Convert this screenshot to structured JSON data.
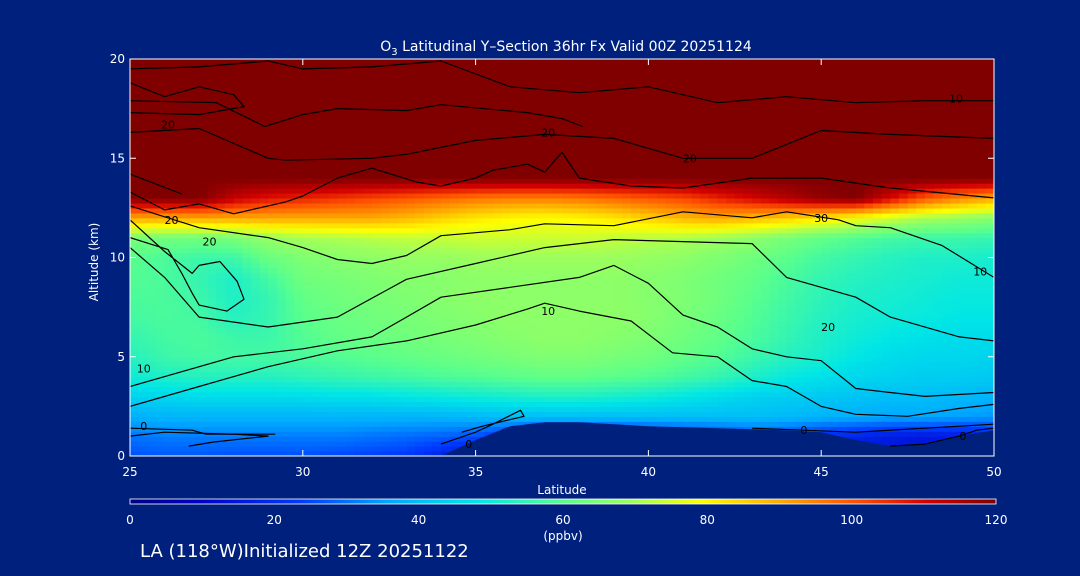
{
  "chart_data": {
    "type": "heatmap",
    "title_prefix": "O",
    "title_sub": "3",
    "title_rest": " Latitudinal Y–Section 36hr  Fx Valid 00Z 20251124",
    "xlabel": "Latitude",
    "ylabel": "Altitude (km)",
    "xlim": [
      25,
      50
    ],
    "ylim": [
      0,
      20
    ],
    "xticks": [
      "25",
      "30",
      "35",
      "40",
      "45",
      "50"
    ],
    "yticks": [
      "0",
      "5",
      "10",
      "15",
      "20"
    ],
    "colorbar": {
      "min": 0,
      "max": 120,
      "ticks": [
        "0",
        "20",
        "40",
        "60",
        "80",
        "100",
        "120"
      ],
      "unit": "(ppbv)"
    },
    "contour_labels": [
      {
        "text": "10",
        "x": 48.9,
        "y": 18.0
      },
      {
        "text": "20",
        "x": 26.1,
        "y": 16.7
      },
      {
        "text": "20",
        "x": 37.1,
        "y": 16.3
      },
      {
        "text": "20",
        "x": 41.2,
        "y": 15.0
      },
      {
        "text": "20",
        "x": 26.2,
        "y": 11.9
      },
      {
        "text": "20",
        "x": 27.3,
        "y": 10.8
      },
      {
        "text": "30",
        "x": 45.0,
        "y": 12.0
      },
      {
        "text": "10",
        "x": 49.6,
        "y": 9.3
      },
      {
        "text": "10",
        "x": 37.1,
        "y": 7.3
      },
      {
        "text": "20",
        "x": 45.2,
        "y": 6.5
      },
      {
        "text": "10",
        "x": 25.4,
        "y": 4.4
      },
      {
        "text": "0",
        "x": 25.4,
        "y": 1.5
      },
      {
        "text": "0",
        "x": 34.8,
        "y": 0.6
      },
      {
        "text": "0",
        "x": 44.5,
        "y": 1.3
      },
      {
        "text": "0",
        "x": 49.1,
        "y": 1.0
      }
    ],
    "data_x": [
      25,
      26,
      27,
      28,
      29,
      30,
      31,
      32,
      33,
      34,
      35,
      36,
      37,
      38,
      39,
      40,
      41,
      42,
      43,
      44,
      45,
      46,
      47,
      48,
      49,
      50
    ],
    "data_y": [
      0,
      1,
      2,
      3,
      4,
      5,
      6,
      7,
      8,
      9,
      10,
      11,
      12,
      13,
      14,
      15,
      16,
      17,
      18,
      19,
      20
    ],
    "values": [
      [
        26,
        27,
        27,
        26,
        26,
        26,
        25,
        24,
        23,
        18,
        12,
        8,
        8,
        8,
        9,
        10,
        10,
        10,
        11,
        12,
        13,
        14,
        15,
        16,
        17,
        18
      ],
      [
        30,
        31,
        31,
        31,
        31,
        31,
        31,
        30,
        29,
        28,
        26,
        20,
        15,
        15,
        16,
        18,
        20,
        22,
        25,
        24,
        20,
        18,
        16,
        15,
        16,
        18
      ],
      [
        37,
        38,
        38,
        38,
        38,
        38,
        38,
        38,
        38,
        38,
        39,
        40,
        40,
        40,
        40,
        40,
        40,
        40,
        40,
        39,
        38,
        37,
        36,
        36,
        35,
        34
      ],
      [
        44,
        45,
        46,
        46,
        46,
        46,
        47,
        47,
        48,
        49,
        50,
        51,
        52,
        52,
        51,
        50,
        48,
        46,
        44,
        43,
        42,
        41,
        40,
        40,
        39,
        38
      ],
      [
        50,
        52,
        53,
        53,
        53,
        54,
        55,
        56,
        57,
        58,
        59,
        60,
        61,
        61,
        60,
        59,
        57,
        55,
        52,
        49,
        47,
        45,
        44,
        43,
        43,
        42
      ],
      [
        53,
        56,
        57,
        57,
        57,
        58,
        59,
        60,
        61,
        62,
        63,
        64,
        65,
        65,
        64,
        63,
        61,
        59,
        56,
        53,
        51,
        48,
        46,
        45,
        45,
        44
      ],
      [
        55,
        57,
        58,
        56,
        56,
        59,
        61,
        62,
        63,
        64,
        65,
        66,
        67,
        67,
        66,
        65,
        63,
        61,
        58,
        55,
        52,
        50,
        48,
        47,
        46,
        46
      ],
      [
        57,
        58,
        57,
        53,
        55,
        60,
        62,
        63,
        64,
        65,
        66,
        67,
        67,
        67,
        67,
        66,
        64,
        62,
        59,
        56,
        53,
        51,
        50,
        49,
        48,
        48
      ],
      [
        58,
        58,
        56,
        52,
        55,
        61,
        63,
        64,
        65,
        66,
        67,
        67,
        67,
        67,
        67,
        66,
        65,
        63,
        60,
        57,
        54,
        52,
        51,
        50,
        49,
        49
      ],
      [
        59,
        58,
        55,
        52,
        57,
        63,
        64,
        65,
        66,
        66,
        67,
        67,
        67,
        67,
        67,
        66,
        65,
        63,
        61,
        58,
        55,
        53,
        52,
        51,
        50,
        50
      ],
      [
        60,
        58,
        56,
        56,
        62,
        65,
        66,
        67,
        68,
        68,
        69,
        69,
        69,
        69,
        69,
        68,
        67,
        65,
        63,
        60,
        57,
        55,
        53,
        52,
        52,
        51
      ],
      [
        64,
        63,
        63,
        64,
        68,
        70,
        71,
        72,
        73,
        73,
        74,
        74,
        74,
        74,
        73,
        72,
        71,
        69,
        67,
        64,
        61,
        59,
        57,
        56,
        56,
        55
      ],
      [
        90,
        90,
        90,
        90,
        90,
        90,
        90,
        90,
        88,
        85,
        82,
        80,
        79,
        80,
        82,
        85,
        88,
        90,
        88,
        85,
        82,
        78,
        74,
        70,
        68,
        66
      ],
      [
        120,
        120,
        120,
        112,
        108,
        106,
        104,
        102,
        100,
        98,
        96,
        95,
        95,
        96,
        98,
        100,
        102,
        106,
        110,
        114,
        118,
        120,
        110,
        100,
        94,
        90
      ],
      [
        120,
        120,
        120,
        120,
        120,
        120,
        120,
        120,
        120,
        120,
        120,
        120,
        120,
        120,
        120,
        120,
        120,
        120,
        120,
        120,
        120,
        120,
        120,
        120,
        120,
        120
      ],
      [
        120,
        120,
        120,
        120,
        120,
        120,
        120,
        120,
        120,
        120,
        120,
        120,
        120,
        120,
        120,
        120,
        120,
        120,
        120,
        120,
        120,
        120,
        120,
        120,
        120,
        120
      ],
      [
        120,
        120,
        120,
        120,
        120,
        120,
        120,
        120,
        120,
        120,
        120,
        120,
        120,
        120,
        120,
        120,
        120,
        120,
        120,
        120,
        120,
        120,
        120,
        120,
        120,
        120
      ],
      [
        120,
        120,
        120,
        120,
        120,
        120,
        120,
        120,
        120,
        120,
        120,
        120,
        120,
        120,
        120,
        120,
        120,
        120,
        120,
        120,
        120,
        120,
        120,
        120,
        120,
        120
      ],
      [
        120,
        120,
        120,
        120,
        120,
        120,
        120,
        120,
        120,
        120,
        120,
        120,
        120,
        120,
        120,
        120,
        120,
        120,
        120,
        120,
        120,
        120,
        120,
        120,
        120,
        120
      ],
      [
        120,
        120,
        120,
        120,
        120,
        120,
        120,
        120,
        120,
        120,
        120,
        120,
        120,
        120,
        120,
        120,
        120,
        120,
        120,
        120,
        120,
        120,
        120,
        120,
        120,
        120
      ],
      [
        120,
        120,
        120,
        120,
        120,
        120,
        120,
        120,
        120,
        120,
        120,
        120,
        120,
        120,
        120,
        120,
        120,
        120,
        120,
        120,
        120,
        120,
        120,
        120,
        120,
        120
      ]
    ],
    "terrain": [
      [
        25,
        0
      ],
      [
        34,
        0
      ],
      [
        35,
        0.8
      ],
      [
        36,
        1.5
      ],
      [
        37,
        1.7
      ],
      [
        38,
        1.7
      ],
      [
        40,
        1.5
      ],
      [
        42,
        1.4
      ],
      [
        44,
        1.3
      ],
      [
        45,
        1.2
      ],
      [
        46,
        0.8
      ],
      [
        47,
        0.5
      ],
      [
        48,
        0.6
      ],
      [
        49,
        1.0
      ],
      [
        50,
        1.3
      ],
      [
        50,
        0
      ]
    ],
    "contour_lines": [
      [
        [
          25,
          19.5
        ],
        [
          27,
          19.6
        ],
        [
          29,
          19.9
        ],
        [
          30,
          19.5
        ],
        [
          32,
          19.6
        ],
        [
          34,
          19.9
        ],
        [
          36,
          18.6
        ],
        [
          38,
          18.3
        ],
        [
          40,
          18.6
        ],
        [
          42,
          17.8
        ],
        [
          44,
          18.1
        ],
        [
          46,
          17.8
        ],
        [
          48,
          17.9
        ],
        [
          50,
          17.9
        ]
      ],
      [
        [
          25,
          18.8
        ],
        [
          26,
          18.1
        ],
        [
          27,
          18.6
        ],
        [
          28,
          18.2
        ],
        [
          28.3,
          17.6
        ],
        [
          27,
          17.2
        ],
        [
          25,
          17.3
        ]
      ],
      [
        [
          25,
          17.9
        ],
        [
          27.5,
          17.8
        ],
        [
          28.9,
          16.6
        ],
        [
          30,
          17.2
        ],
        [
          31,
          17.5
        ],
        [
          33,
          17.4
        ],
        [
          34,
          17.7
        ],
        [
          36.5,
          17.3
        ],
        [
          37.5,
          17.0
        ],
        [
          38.1,
          16.6
        ]
      ],
      [
        [
          25,
          16.3
        ],
        [
          27,
          16.5
        ],
        [
          29,
          15.0
        ],
        [
          29.5,
          14.9
        ],
        [
          32,
          15.0
        ],
        [
          33,
          15.2
        ],
        [
          35,
          15.9
        ],
        [
          37,
          16.2
        ],
        [
          39,
          16.0
        ],
        [
          41,
          15.0
        ],
        [
          43,
          15.0
        ],
        [
          45,
          16.4
        ],
        [
          47,
          16.2
        ],
        [
          50,
          16.0
        ]
      ],
      [
        [
          25,
          14.2
        ],
        [
          26.5,
          13.2
        ]
      ],
      [
        [
          25,
          13.3
        ],
        [
          26,
          12.4
        ],
        [
          27,
          12.7
        ],
        [
          28,
          12.2
        ],
        [
          29.5,
          12.8
        ],
        [
          30,
          13.1
        ],
        [
          31,
          14.0
        ],
        [
          32,
          14.5
        ],
        [
          33.3,
          13.8
        ],
        [
          34,
          13.6
        ],
        [
          35,
          14.0
        ],
        [
          35.5,
          14.4
        ],
        [
          36.5,
          14.7
        ],
        [
          37,
          14.3
        ],
        [
          37.5,
          15.3
        ],
        [
          38,
          14.0
        ],
        [
          39.5,
          13.6
        ],
        [
          41,
          13.5
        ],
        [
          43,
          14.0
        ],
        [
          45,
          14.0
        ],
        [
          47,
          13.5
        ],
        [
          50,
          13.0
        ]
      ],
      [
        [
          25,
          12.6
        ],
        [
          27,
          11.5
        ],
        [
          29,
          11.0
        ],
        [
          30,
          10.5
        ],
        [
          31,
          9.9
        ],
        [
          32,
          9.7
        ],
        [
          33,
          10.1
        ],
        [
          34,
          11.1
        ],
        [
          36,
          11.4
        ],
        [
          37,
          11.7
        ],
        [
          39,
          11.6
        ],
        [
          41,
          12.3
        ],
        [
          43,
          12.0
        ],
        [
          44,
          12.3
        ],
        [
          45.5,
          11.9
        ],
        [
          46,
          11.6
        ],
        [
          47,
          11.5
        ],
        [
          48.5,
          10.6
        ],
        [
          50,
          9.0
        ]
      ],
      [
        [
          25,
          11.9
        ],
        [
          26,
          10.3
        ],
        [
          26.8,
          9.2
        ],
        [
          27,
          9.6
        ],
        [
          27.6,
          9.8
        ],
        [
          28.1,
          8.8
        ],
        [
          28.3,
          7.9
        ],
        [
          27.8,
          7.3
        ],
        [
          27,
          7.6
        ],
        [
          26.8,
          8.2
        ],
        [
          26.5,
          9.2
        ],
        [
          26.1,
          10.4
        ],
        [
          25,
          11.0
        ]
      ],
      [
        [
          25,
          10.5
        ],
        [
          26,
          9.0
        ],
        [
          27,
          7.0
        ],
        [
          29,
          6.5
        ],
        [
          31,
          7.0
        ],
        [
          33,
          8.9
        ],
        [
          35,
          9.7
        ],
        [
          37,
          10.5
        ],
        [
          39,
          10.9
        ],
        [
          41,
          10.8
        ],
        [
          43,
          10.7
        ],
        [
          44,
          9.0
        ],
        [
          46,
          8.0
        ],
        [
          47,
          7.0
        ],
        [
          49,
          6.0
        ],
        [
          50,
          5.8
        ]
      ],
      [
        [
          25,
          2.5
        ],
        [
          27,
          3.5
        ],
        [
          29,
          4.5
        ],
        [
          31,
          5.3
        ],
        [
          33,
          5.8
        ],
        [
          35,
          6.6
        ],
        [
          36.5,
          7.4
        ],
        [
          37,
          7.7
        ],
        [
          38,
          7.3
        ],
        [
          39.5,
          6.8
        ],
        [
          40.7,
          5.2
        ],
        [
          42,
          5.0
        ],
        [
          43,
          3.8
        ],
        [
          44,
          3.5
        ],
        [
          45,
          2.5
        ],
        [
          46,
          2.1
        ],
        [
          47.5,
          2.0
        ],
        [
          49,
          2.4
        ],
        [
          50,
          2.6
        ]
      ],
      [
        [
          25,
          3.5
        ],
        [
          28,
          5.0
        ],
        [
          30,
          5.4
        ],
        [
          32,
          6.0
        ],
        [
          33,
          7.0
        ],
        [
          34,
          8.0
        ],
        [
          36,
          8.5
        ],
        [
          38,
          9.0
        ],
        [
          39,
          9.6
        ],
        [
          40,
          8.7
        ],
        [
          41,
          7.1
        ],
        [
          42,
          6.5
        ],
        [
          43,
          5.4
        ],
        [
          44,
          5.0
        ],
        [
          45,
          4.8
        ],
        [
          46,
          3.4
        ],
        [
          47,
          3.2
        ],
        [
          48,
          3.0
        ],
        [
          50,
          3.2
        ]
      ],
      [
        [
          25,
          1.0
        ],
        [
          26,
          1.2
        ],
        [
          28,
          1.1
        ],
        [
          29,
          1.0
        ],
        [
          27.4,
          0.7
        ],
        [
          26.7,
          0.5
        ]
      ],
      [
        [
          25,
          1.4
        ],
        [
          26.8,
          1.3
        ],
        [
          27.2,
          1.1
        ],
        [
          29.2,
          1.1
        ]
      ],
      [
        [
          34,
          0.6
        ],
        [
          35,
          1.2
        ],
        [
          35.5,
          1.6
        ],
        [
          36.3,
          2.3
        ],
        [
          36.4,
          2.0
        ],
        [
          35.2,
          1.5
        ],
        [
          34.6,
          1.2
        ]
      ],
      [
        [
          43,
          1.4
        ],
        [
          44.5,
          1.3
        ],
        [
          46,
          1.2
        ],
        [
          48,
          1.4
        ],
        [
          49,
          1.5
        ],
        [
          50,
          1.6
        ]
      ],
      [
        [
          47,
          0.5
        ],
        [
          48,
          0.6
        ],
        [
          49,
          1.0
        ],
        [
          49.5,
          1.3
        ],
        [
          50,
          1.4
        ]
      ]
    ]
  },
  "footer": {
    "text": "LA (118°W)Initialized 12Z 20251122"
  }
}
